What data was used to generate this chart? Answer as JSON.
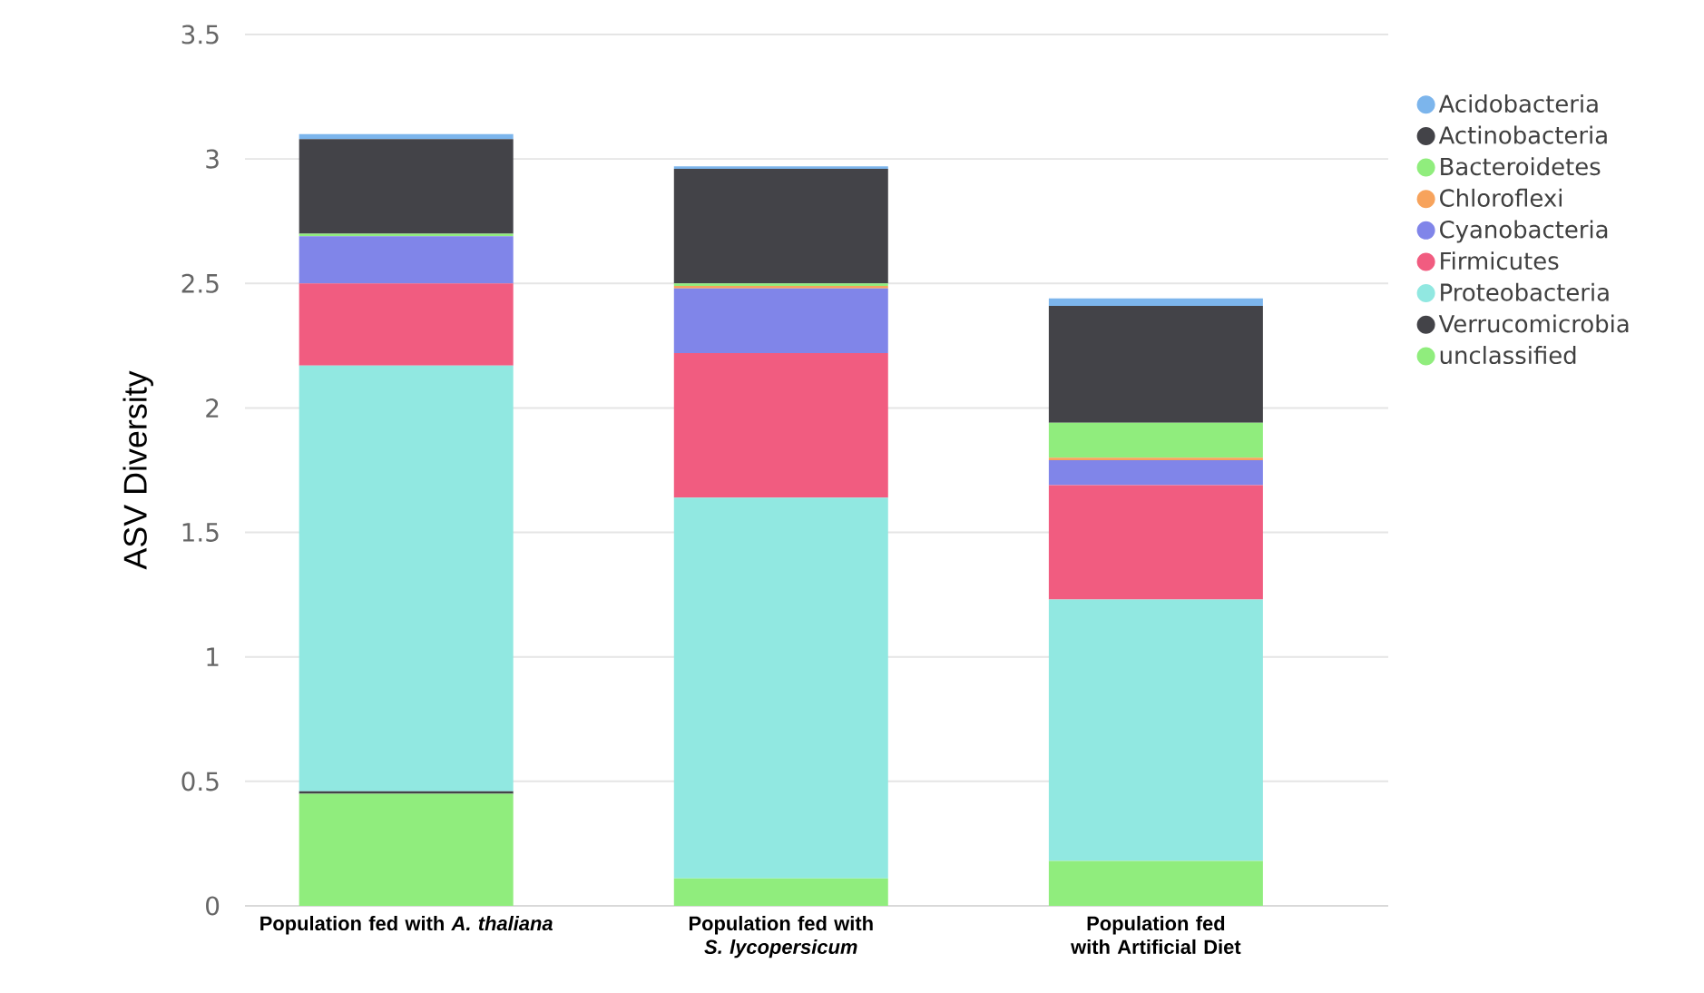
{
  "chart_data": {
    "type": "bar",
    "stacked": true,
    "ylabel": "ASV Diversity",
    "categories": [
      "Population fed with *A. thaliana*",
      "Population fed with *S. lycopersicum*",
      "Population fed with Artificial Diet"
    ],
    "series": [
      {
        "name": "unclassified",
        "color": "#90ed7d",
        "values": [
          0.45,
          0.11,
          0.18
        ]
      },
      {
        "name": "Verrucomicrobia",
        "color": "#434348",
        "values": [
          0.01,
          0,
          0
        ]
      },
      {
        "name": "Proteobacteria",
        "color": "#91e8e1",
        "values": [
          1.71,
          1.53,
          1.05
        ]
      },
      {
        "name": "Firmicutes",
        "color": "#f15c80",
        "values": [
          0.33,
          0.58,
          0.46
        ]
      },
      {
        "name": "Cyanobacteria",
        "color": "#8085e9",
        "values": [
          0.19,
          0.26,
          0.1
        ]
      },
      {
        "name": "Chloroflexi",
        "color": "#f7a35c",
        "values": [
          0,
          0.01,
          0.01
        ]
      },
      {
        "name": "Bacteroidetes",
        "color": "#90ed7d",
        "values": [
          0.01,
          0.01,
          0.14
        ]
      },
      {
        "name": "Actinobacteria",
        "color": "#434348",
        "values": [
          0.38,
          0.46,
          0.47
        ]
      },
      {
        "name": "Acidobacteria",
        "color": "#7cb5ec",
        "values": [
          0.02,
          0.01,
          0.03
        ]
      }
    ],
    "ylim": [
      0,
      3.5
    ],
    "yticks": [
      0,
      0.5,
      1,
      1.5,
      2,
      2.5,
      3,
      3.5
    ],
    "grid": "y",
    "legend": "right"
  }
}
